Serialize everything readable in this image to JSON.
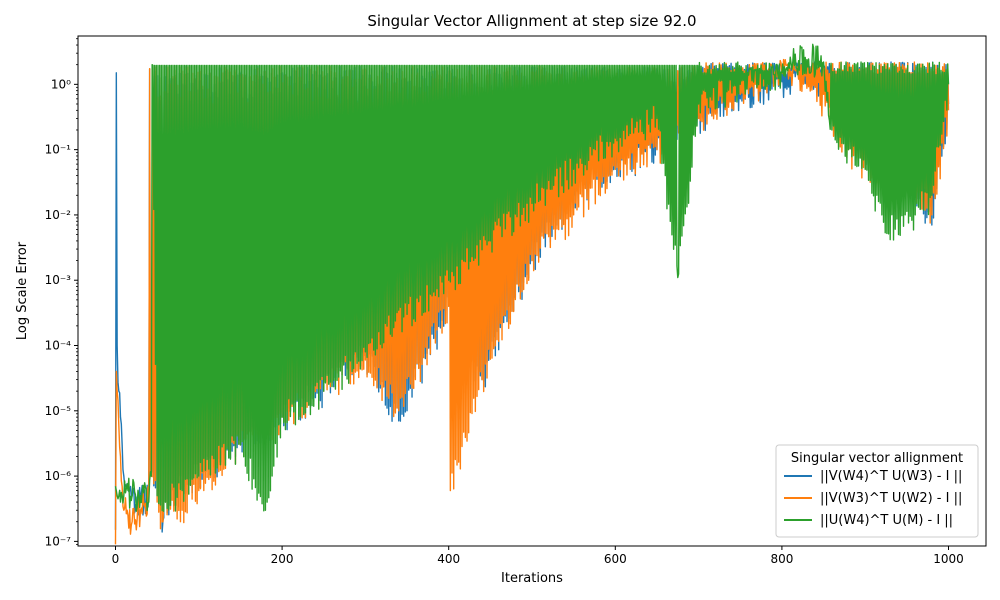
{
  "chart_data": {
    "type": "line",
    "title": "Singular Vector Allignment at step size 92.0",
    "xlabel": "Iterations",
    "ylabel": "Log Scale Error",
    "yscale": "log",
    "xlim": [
      -45,
      1045
    ],
    "ylim": [
      8.5e-08,
      5.5
    ],
    "xticks": [
      0,
      200,
      400,
      600,
      800,
      1000
    ],
    "xtick_labels": [
      "0",
      "200",
      "400",
      "600",
      "800",
      "1000"
    ],
    "yticks": [
      1e-07,
      1e-06,
      1e-05,
      0.0001,
      0.001,
      0.01,
      0.1,
      1
    ],
    "ytick_labels": [
      "10⁻⁷",
      "10⁻⁶",
      "10⁻⁵",
      "10⁻⁴",
      "10⁻³",
      "10⁻²",
      "10⁻¹",
      "10⁰"
    ],
    "grid": false,
    "legend": {
      "title": "Singular vector allignment",
      "position": "bottom-right"
    },
    "series": [
      {
        "name": "||V(W4)^T U(W3) - I ||",
        "color": "#1f77b4",
        "x": [
          0,
          1,
          2,
          4,
          6,
          8,
          10,
          15,
          20,
          30,
          40,
          43,
          50,
          57,
          60,
          80,
          100,
          150,
          200,
          250,
          300,
          340,
          400,
          440,
          500,
          550,
          600,
          650,
          700,
          750,
          800,
          820,
          840,
          860,
          880,
          900,
          920,
          940,
          960,
          980,
          1000
        ],
        "y": [
          1.5e-07,
          1.5,
          0.0001,
          2e-05,
          8e-06,
          3e-06,
          1e-06,
          7e-07,
          5e-07,
          4e-07,
          5e-07,
          1e-06,
          5e-07,
          2.1e-07,
          4e-07,
          6e-07,
          1e-06,
          3e-06,
          8e-06,
          2e-05,
          7e-05,
          7e-06,
          0.0004,
          3e-05,
          0.002,
          0.02,
          0.05,
          0.1,
          0.3,
          0.6,
          1.1,
          1.3,
          1.0,
          0.9,
          0.3,
          0.1,
          0.05,
          0.05,
          0.02,
          0.007,
          0.5
        ]
      },
      {
        "name": "||V(W3)^T U(W2) - I ||",
        "color": "#ff7f0e",
        "x": [
          0,
          1,
          2,
          4,
          6,
          8,
          10,
          15,
          20,
          30,
          40,
          43,
          50,
          57,
          60,
          80,
          100,
          150,
          200,
          250,
          300,
          340,
          400,
          402,
          440,
          500,
          550,
          600,
          650,
          700,
          750,
          800,
          820,
          840,
          860,
          880,
          900,
          920,
          940,
          960,
          980,
          1000
        ],
        "y": [
          9e-08,
          4e-05,
          2e-05,
          6e-06,
          2e-06,
          7e-07,
          3e-07,
          2.5e-07,
          2e-07,
          3e-07,
          5e-07,
          1e-06,
          4e-07,
          2e-07,
          4e-07,
          3e-07,
          6e-07,
          3e-06,
          8e-06,
          2e-05,
          6e-05,
          1e-05,
          0.0004,
          6e-07,
          3e-05,
          0.002,
          0.01,
          0.05,
          0.1,
          0.3,
          0.7,
          1.5,
          1.2,
          0.9,
          0.3,
          0.1,
          0.05,
          0.04,
          0.05,
          0.03,
          0.01,
          0.4
        ]
      },
      {
        "name": "||U(W4)^T U(M) - I ||",
        "color": "#2ca02c",
        "x": [
          0,
          1,
          2,
          4,
          6,
          8,
          10,
          15,
          20,
          30,
          40,
          43,
          44,
          50,
          60,
          80,
          100,
          150,
          180,
          200,
          250,
          300,
          350,
          400,
          450,
          500,
          550,
          600,
          650,
          675,
          700,
          750,
          800,
          820,
          830,
          850,
          860,
          880,
          900,
          920,
          940,
          960,
          980,
          1000
        ],
        "y": [
          7e-07,
          6e-07,
          5e-07,
          5e-07,
          4e-07,
          5e-07,
          5e-07,
          6e-07,
          5e-07,
          5e-07,
          4e-07,
          1e-06,
          2.0,
          5e-07,
          4e-07,
          6e-07,
          1e-06,
          3e-06,
          3e-07,
          8e-06,
          2e-05,
          8e-05,
          0.0003,
          0.001,
          0.004,
          0.015,
          0.05,
          0.15,
          0.3,
          0.0011,
          0.5,
          1.0,
          1.5,
          2.3,
          2.4,
          2.2,
          0.2,
          0.1,
          0.05,
          0.01,
          0.005,
          0.01,
          0.02,
          1.0
        ]
      }
    ]
  }
}
